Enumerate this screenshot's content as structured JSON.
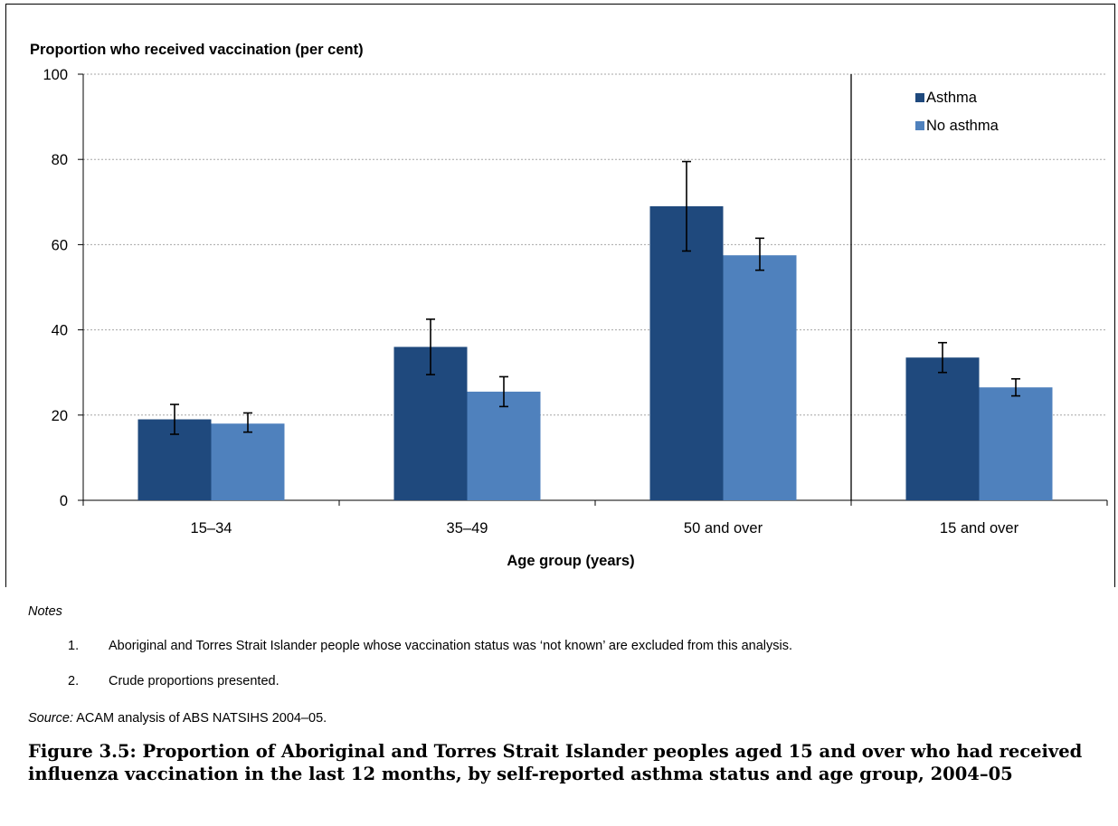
{
  "chart_data": {
    "type": "bar",
    "ylabel": "Proportion who received vaccination (per cent)",
    "xlabel": "Age group (years)",
    "ylim": [
      0,
      100
    ],
    "yticks": [
      "0",
      "20",
      "40",
      "60",
      "80",
      "100"
    ],
    "grid": true,
    "legend_position": "top-right",
    "categories": [
      "15–34",
      "35–49",
      "50 and over",
      "15 and over"
    ],
    "divider_after_category": 2,
    "series": [
      {
        "name": "Asthma",
        "color": "#1f497d",
        "values": [
          19,
          36,
          69,
          33.5
        ],
        "error_low": [
          15.5,
          29.5,
          58.5,
          30
        ],
        "error_high": [
          22.5,
          42.5,
          79.5,
          37
        ]
      },
      {
        "name": "No asthma",
        "color": "#4f81bd",
        "values": [
          18,
          25.5,
          57.5,
          26.5
        ],
        "error_low": [
          16,
          22,
          54,
          24.5
        ],
        "error_high": [
          20.5,
          29,
          61.5,
          28.5
        ]
      }
    ]
  },
  "notes": {
    "heading": "Notes",
    "items": [
      {
        "num": "1.",
        "text": "Aboriginal and Torres Strait Islander people whose vaccination status was ‘not known’ are excluded from this analysis."
      },
      {
        "num": "2.",
        "text": "Crude proportions presented."
      }
    ]
  },
  "source": {
    "label": "Source:",
    "text": " ACAM analysis of ABS NATSIHS 2004–05."
  },
  "caption": "Figure 3.5: Proportion of Aboriginal and Torres Strait Islander peoples aged 15 and over who had received influenza vaccination in the last 12 months, by self-reported asthma status and age group, 2004–05"
}
